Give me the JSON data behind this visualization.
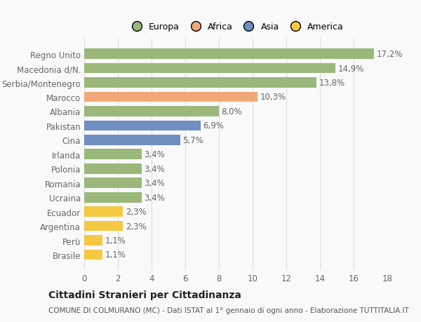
{
  "categories": [
    "Brasile",
    "Perù",
    "Argentina",
    "Ecuador",
    "Ucraina",
    "Romania",
    "Polonia",
    "Irlanda",
    "Cina",
    "Pakistan",
    "Albania",
    "Marocco",
    "Serbia/Montenegro",
    "Macedonia d/N.",
    "Regno Unito"
  ],
  "values": [
    1.1,
    1.1,
    2.3,
    2.3,
    3.4,
    3.4,
    3.4,
    3.4,
    5.7,
    6.9,
    8.0,
    10.3,
    13.8,
    14.9,
    17.2
  ],
  "colors": [
    "#f5c842",
    "#f5c842",
    "#f5c842",
    "#f5c842",
    "#9ab87a",
    "#9ab87a",
    "#9ab87a",
    "#9ab87a",
    "#6e8fc0",
    "#6e8fc0",
    "#9ab87a",
    "#f0a878",
    "#9ab87a",
    "#9ab87a",
    "#9ab87a"
  ],
  "labels": [
    "1,1%",
    "1,1%",
    "2,3%",
    "2,3%",
    "3,4%",
    "3,4%",
    "3,4%",
    "3,4%",
    "5,7%",
    "6,9%",
    "8,0%",
    "10,3%",
    "13,8%",
    "14,9%",
    "17,2%"
  ],
  "legend": [
    {
      "label": "Europa",
      "color": "#9ab87a"
    },
    {
      "label": "Africa",
      "color": "#f0a878"
    },
    {
      "label": "Asia",
      "color": "#6e8fc0"
    },
    {
      "label": "America",
      "color": "#f5c842"
    }
  ],
  "xlim": [
    0,
    18
  ],
  "xticks": [
    0,
    2,
    4,
    6,
    8,
    10,
    12,
    14,
    16,
    18
  ],
  "title": "Cittadini Stranieri per Cittadinanza",
  "subtitle": "COMUNE DI COLMURANO (MC) - Dati ISTAT al 1° gennaio di ogni anno - Elaborazione TUTTITALIA.IT",
  "background_color": "#f9f9f9",
  "bar_height": 0.72,
  "grid_color": "#dddddd",
  "label_fontsize": 8.5,
  "ytick_fontsize": 8.5,
  "xtick_fontsize": 8.5,
  "title_fontsize": 10,
  "subtitle_fontsize": 7.5
}
